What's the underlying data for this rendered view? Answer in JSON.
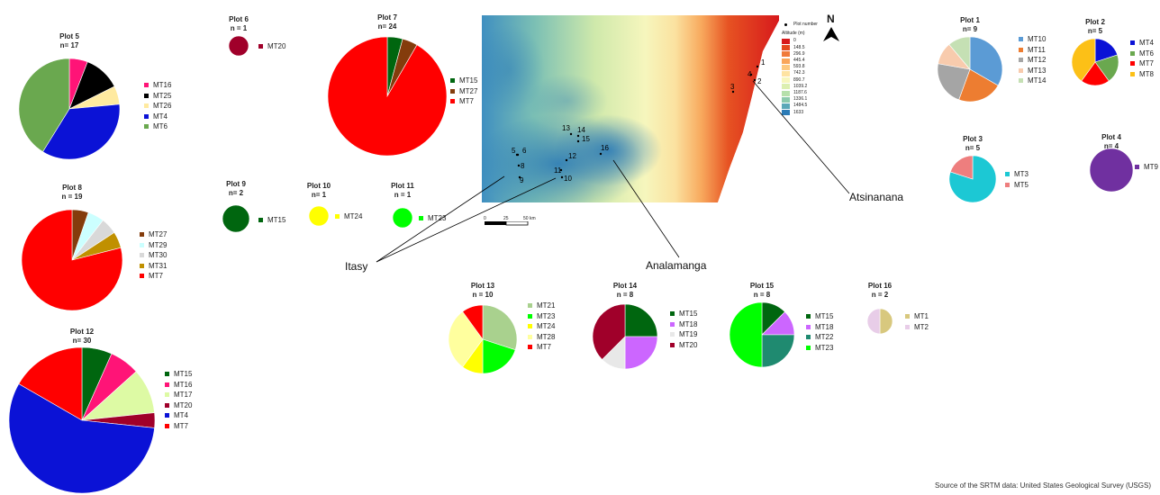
{
  "colors": {
    "MT1": "#d8c87e",
    "MT2": "#e8cde8",
    "MT3": "#1cc8d4",
    "MT4": "#0b12d6",
    "MT5": "#ee7e7e",
    "MT6": "#6aa84f",
    "MT7": "#ff0000",
    "MT8": "#fcc017",
    "MT9": "#7030a0",
    "MT10": "#5b9bd5",
    "MT11": "#ed7d31",
    "MT12": "#a5a5a5",
    "MT13": "#f8cbad",
    "MT14": "#c5e0b4",
    "MT15": "#00660f",
    "MT16": "#ff1477",
    "MT17": "#ddfaa4",
    "MT18": "#cc66ff",
    "MT19": "#e8e8e8",
    "MT20": "#a0002a",
    "MT21": "#a9d18e",
    "MT22": "#1f8a70",
    "MT23": "#00ff00",
    "MT24": "#ffff00",
    "MT25": "#000000",
    "MT26": "#ffeaa0",
    "MT27": "#843c0c",
    "MT28": "#ffff9e",
    "MT29": "#ccffff",
    "MT30": "#d9d9d9",
    "MT31": "#c09000"
  },
  "chart_data": {
    "type": "pie",
    "plots": [
      {
        "title": "Plot 1",
        "n": "n= 9",
        "labels": [
          "MT10",
          "MT11",
          "MT12",
          "MT13",
          "MT14"
        ],
        "values": [
          3,
          2,
          2,
          1,
          1
        ]
      },
      {
        "title": "Plot 2",
        "n": "n= 5",
        "labels": [
          "MT4",
          "MT6",
          "MT7",
          "MT8"
        ],
        "values": [
          1,
          1,
          1,
          2
        ]
      },
      {
        "title": "Plot 3",
        "n": "n= 5",
        "labels": [
          "MT3",
          "MT5"
        ],
        "values": [
          4,
          1
        ]
      },
      {
        "title": "Plot 4",
        "n": "n= 4",
        "labels": [
          "MT9"
        ],
        "values": [
          4
        ]
      },
      {
        "title": "Plot 5",
        "n": "n= 17",
        "labels": [
          "MT16",
          "MT25",
          "MT26",
          "MT4",
          "MT6"
        ],
        "values": [
          1,
          2,
          1,
          6,
          7
        ]
      },
      {
        "title": "Plot  6",
        "n": "n = 1",
        "labels": [
          "MT20"
        ],
        "values": [
          1
        ]
      },
      {
        "title": "Plot 7",
        "n": "n= 24",
        "labels": [
          "MT15",
          "MT27",
          "MT7"
        ],
        "values": [
          1,
          1,
          22
        ]
      },
      {
        "title": "Plot 8",
        "n": "n = 19",
        "labels": [
          "MT27",
          "MT29",
          "MT30",
          "MT31",
          "MT7"
        ],
        "values": [
          1,
          1,
          1,
          1,
          15
        ]
      },
      {
        "title": "Plot 9",
        "n": "n= 2",
        "labels": [
          "MT15"
        ],
        "values": [
          2
        ]
      },
      {
        "title": "Plot 10",
        "n": "n= 1",
        "labels": [
          "MT24"
        ],
        "values": [
          1
        ]
      },
      {
        "title": "Plot 11",
        "n": "n = 1",
        "labels": [
          "MT23"
        ],
        "values": [
          1
        ]
      },
      {
        "title": "Plot 12",
        "n": "n= 30",
        "labels": [
          "MT15",
          "MT16",
          "MT17",
          "MT20",
          "MT4",
          "MT7"
        ],
        "values": [
          2,
          2,
          3,
          1,
          17,
          5
        ]
      },
      {
        "title": "Plot 13",
        "n": "n = 10",
        "labels": [
          "MT21",
          "MT23",
          "MT24",
          "MT28",
          "MT7"
        ],
        "values": [
          3,
          2,
          1,
          3,
          1
        ]
      },
      {
        "title": "Plot 14",
        "n": "n = 8",
        "labels": [
          "MT15",
          "MT18",
          "MT19",
          "MT20"
        ],
        "values": [
          2,
          2,
          1,
          3
        ]
      },
      {
        "title": "Plot 15",
        "n": "n = 8",
        "labels": [
          "MT15",
          "MT18",
          "MT22",
          "MT23"
        ],
        "values": [
          1,
          1,
          2,
          4
        ]
      },
      {
        "title": "Plot 16",
        "n": "n = 2",
        "labels": [
          "MT1",
          "MT2"
        ],
        "values": [
          1,
          1
        ]
      }
    ]
  },
  "map": {
    "north_label": "N",
    "legend_point_label": "Plot number",
    "altitude_title": "Altitude (m)",
    "altitude_values": [
      "0",
      "148.5",
      "296.9",
      "445.4",
      "593.8",
      "742.3",
      "890.7",
      "1039.2",
      "1187.6",
      "1336.1",
      "1484.5",
      "1633"
    ],
    "altitude_colors": [
      "#d7191c",
      "#e4481f",
      "#f07a3a",
      "#f9a65b",
      "#fdc980",
      "#fee3a2",
      "#f7f6bd",
      "#dcefb0",
      "#b6e0ab",
      "#8ccaac",
      "#5ba8b8",
      "#2c7bb6"
    ],
    "scale_labels": [
      "0",
      "25",
      "50 km"
    ],
    "plot_numbers": [
      "1",
      "2",
      "3",
      "4",
      "5",
      "6",
      "8",
      "9",
      "10",
      "11",
      "12",
      "13",
      "14",
      "15",
      "16"
    ]
  },
  "regions": {
    "itasy": "Itasy",
    "analamanga": "Analamanga",
    "atsinanana": "Atsinanana"
  },
  "source": "Source of the SRTM data: United States Geological Survey (USGS)"
}
